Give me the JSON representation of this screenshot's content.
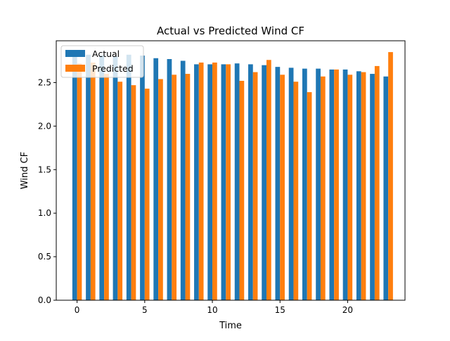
{
  "chart_data": {
    "type": "bar",
    "title": "Actual vs Predicted Wind CF",
    "xlabel": "Time",
    "ylabel": "Wind CF",
    "x": [
      0,
      1,
      2,
      3,
      4,
      5,
      6,
      7,
      8,
      9,
      10,
      11,
      12,
      13,
      14,
      15,
      16,
      17,
      18,
      19,
      20,
      21,
      22,
      23
    ],
    "xlim": [
      -1.54,
      24.24
    ],
    "ylim": [
      0,
      2.98
    ],
    "xticks": [
      0,
      5,
      10,
      15,
      20
    ],
    "xtick_labels": [
      "0",
      "5",
      "10",
      "15",
      "20"
    ],
    "yticks": [
      0.0,
      0.5,
      1.0,
      1.5,
      2.0,
      2.5
    ],
    "ytick_labels": [
      "0.0",
      "0.5",
      "1.0",
      "1.5",
      "2.0",
      "2.5"
    ],
    "grid": false,
    "legend_position": "upper-left",
    "series": [
      {
        "name": "Actual",
        "color": "#1f77b4",
        "values": [
          2.84,
          2.82,
          2.81,
          2.8,
          2.82,
          2.81,
          2.78,
          2.77,
          2.75,
          2.71,
          2.71,
          2.71,
          2.72,
          2.71,
          2.7,
          2.68,
          2.67,
          2.66,
          2.66,
          2.65,
          2.65,
          2.63,
          2.6,
          2.57
        ]
      },
      {
        "name": "Predicted",
        "color": "#ff7f0e",
        "values": [
          2.72,
          2.73,
          2.6,
          2.51,
          2.47,
          2.43,
          2.54,
          2.59,
          2.6,
          2.73,
          2.73,
          2.71,
          2.52,
          2.62,
          2.76,
          2.59,
          2.51,
          2.39,
          2.57,
          2.65,
          2.59,
          2.62,
          2.69,
          2.85
        ]
      }
    ]
  }
}
